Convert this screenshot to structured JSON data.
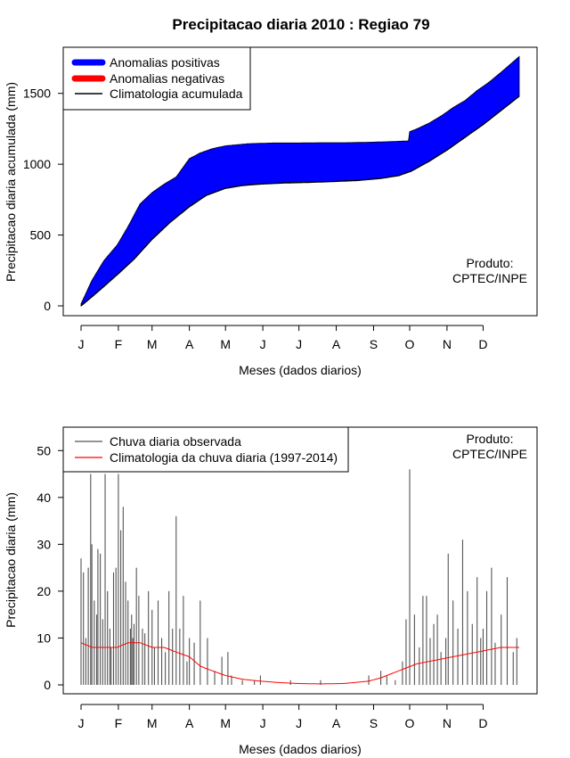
{
  "colors": {
    "positive": "#0000ff",
    "negative": "#ff0000",
    "climatology": "#000000",
    "observed": "#555555",
    "clim_daily": "#ff0000"
  },
  "chart_data": [
    {
      "type": "area",
      "title": "Precipitacao diaria 2010 : Regiao 79",
      "xlabel": "Meses (dados diarios)",
      "ylabel": "Precipitacao diaria acumulada (mm)",
      "xlim": [
        1,
        365
      ],
      "ylim": [
        0,
        1750
      ],
      "yticks": [
        0,
        500,
        1000,
        1500
      ],
      "month_ticks": {
        "labels": [
          "J",
          "F",
          "M",
          "A",
          "M",
          "J",
          "J",
          "A",
          "S",
          "O",
          "N",
          "D"
        ],
        "days": [
          1,
          32,
          60,
          91,
          121,
          152,
          182,
          213,
          244,
          274,
          305,
          335
        ]
      },
      "legend": [
        "Anomalias positivas",
        "Anomalias negativas",
        "Climatologia acumulada"
      ],
      "legend_position": "top-left",
      "note": [
        "Produto:",
        "CPTEC/INPE"
      ],
      "observed_cumulative": {
        "days": [
          1,
          10,
          20,
          31,
          40,
          50,
          60,
          70,
          80,
          91,
          100,
          110,
          121,
          140,
          160,
          180,
          200,
          220,
          240,
          260,
          273,
          274,
          280,
          290,
          300,
          310,
          320,
          330,
          340,
          350,
          365
        ],
        "values": [
          15,
          180,
          320,
          430,
          560,
          720,
          800,
          860,
          910,
          1040,
          1080,
          1110,
          1130,
          1145,
          1150,
          1150,
          1152,
          1152,
          1155,
          1160,
          1165,
          1230,
          1250,
          1290,
          1340,
          1400,
          1450,
          1520,
          1580,
          1650,
          1760
        ]
      },
      "climatology_cumulative": {
        "days": [
          1,
          15,
          31,
          45,
          60,
          75,
          91,
          105,
          121,
          135,
          150,
          170,
          190,
          210,
          230,
          250,
          265,
          275,
          290,
          305,
          320,
          335,
          350,
          365
        ],
        "values": [
          0,
          100,
          220,
          330,
          470,
          590,
          700,
          780,
          830,
          850,
          860,
          868,
          872,
          878,
          885,
          900,
          920,
          950,
          1020,
          1100,
          1190,
          1280,
          1380,
          1480
        ]
      }
    },
    {
      "type": "bar",
      "xlabel": "Meses (dados diarios)",
      "ylabel": "Precipitacao diaria (mm)",
      "xlim": [
        1,
        365
      ],
      "ylim": [
        0,
        55
      ],
      "yticks": [
        0,
        10,
        20,
        30,
        40,
        50
      ],
      "month_ticks": {
        "labels": [
          "J",
          "F",
          "M",
          "A",
          "M",
          "J",
          "J",
          "A",
          "S",
          "O",
          "N",
          "D"
        ],
        "days": [
          1,
          32,
          60,
          91,
          121,
          152,
          182,
          213,
          244,
          274,
          305,
          335
        ]
      },
      "legend": [
        "Chuva diaria observada",
        "Climatologia da chuva diaria (1997-2014)"
      ],
      "legend_position": "top-left",
      "note": [
        "Produto:",
        "CPTEC/INPE"
      ],
      "observed_daily_bars": {
        "days": [
          1,
          3,
          5,
          7,
          9,
          10,
          12,
          14,
          15,
          17,
          19,
          21,
          23,
          25,
          26,
          28,
          30,
          32,
          34,
          36,
          38,
          40,
          42,
          43,
          44,
          45,
          47,
          49,
          52,
          54,
          57,
          60,
          62,
          65,
          68,
          71,
          74,
          77,
          80,
          83,
          86,
          89,
          91,
          95,
          100,
          106,
          112,
          118,
          123,
          126,
          135,
          145,
          150,
          175,
          200,
          240,
          250,
          255,
          262,
          268,
          271,
          274,
          278,
          282,
          285,
          288,
          291,
          294,
          297,
          300,
          304,
          306,
          310,
          314,
          318,
          322,
          326,
          330,
          333,
          335,
          338,
          342,
          345,
          350,
          355,
          360,
          363
        ],
        "values": [
          27,
          24,
          10,
          25,
          45,
          30,
          18,
          15,
          29,
          28,
          14,
          45,
          20,
          12,
          8,
          24,
          25,
          45,
          33,
          38,
          22,
          18,
          12,
          15,
          10,
          13,
          25,
          19,
          12,
          11,
          20,
          16,
          8,
          18,
          10,
          7,
          20,
          12,
          36,
          12,
          19,
          5,
          10,
          9,
          18,
          10,
          3,
          6,
          7,
          2,
          1,
          1,
          2,
          1,
          1,
          2,
          3,
          2,
          1,
          5,
          14,
          46,
          15,
          8,
          19,
          19,
          10,
          13,
          15,
          7,
          10,
          28,
          18,
          12,
          31,
          20,
          13,
          23,
          10,
          12,
          20,
          25,
          9,
          15,
          23,
          7,
          10
        ]
      },
      "climatology_daily": {
        "days": [
          1,
          10,
          20,
          31,
          40,
          50,
          60,
          70,
          80,
          91,
          100,
          110,
          121,
          135,
          150,
          165,
          180,
          200,
          220,
          240,
          250,
          260,
          270,
          280,
          290,
          300,
          310,
          320,
          330,
          340,
          350,
          360,
          365
        ],
        "values": [
          9,
          8,
          8,
          8,
          9,
          9,
          8,
          8,
          7,
          6,
          4,
          3,
          2,
          1.2,
          0.8,
          0.5,
          0.3,
          0.2,
          0.3,
          0.8,
          1.5,
          2.5,
          3.5,
          4.5,
          5,
          5.5,
          6,
          6.5,
          7,
          7.5,
          8,
          8,
          8
        ]
      }
    }
  ]
}
